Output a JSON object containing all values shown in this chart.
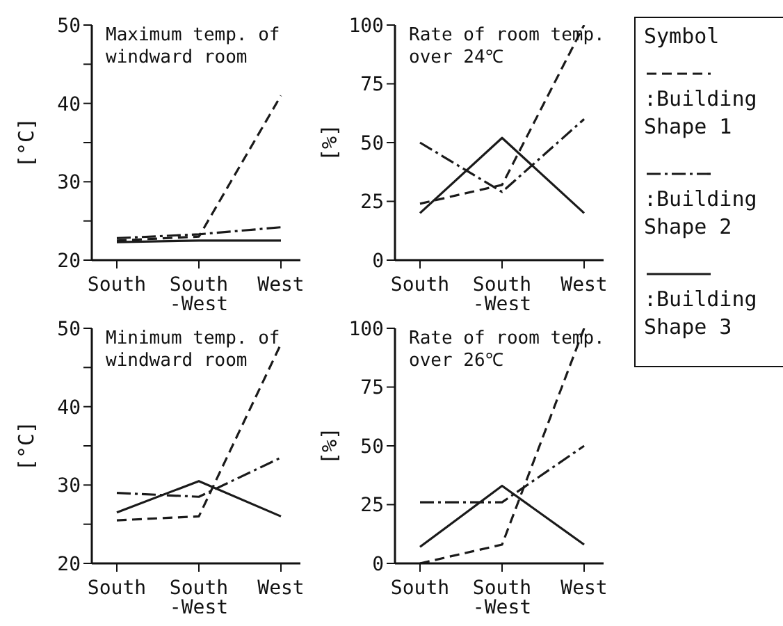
{
  "chart_data": [
    {
      "type": "line",
      "title": "Maximum temp. of windward room",
      "ylabel": "[°C]",
      "categories": [
        "South",
        "South -West",
        "West"
      ],
      "ylim": [
        20,
        50
      ],
      "yticks": [
        20,
        {
          "value": 25,
          "label": null
        },
        30,
        {
          "value": 35,
          "label": null
        },
        40,
        {
          "value": 45,
          "label": null
        },
        50
      ],
      "legend": "right",
      "legend_title": "Symbol",
      "series": [
        {
          "name": ":Building Shape 1",
          "color": "#1a1a1a",
          "line_style": "dashed",
          "values": [
            22.5,
            23,
            41
          ]
        },
        {
          "name": ":Building Shape 2",
          "color": "#1a1a1a",
          "line_style": "dashdot",
          "values": [
            22.8,
            23.3,
            24.2
          ]
        },
        {
          "name": ":Building Shape 3",
          "color": "#1a1a1a",
          "line_style": "solid",
          "values": [
            22.3,
            22.5,
            22.5
          ]
        }
      ]
    },
    {
      "type": "line",
      "title": "Rate of room temp. over 24℃",
      "ylabel": "[%]",
      "categories": [
        "South",
        "South -West",
        "West"
      ],
      "ylim": [
        0,
        100
      ],
      "yticks": [
        0,
        25,
        50,
        75,
        100
      ],
      "series": [
        {
          "color": "#1a1a1a",
          "line_style": "dashed",
          "values": [
            24,
            32,
            100
          ]
        },
        {
          "color": "#1a1a1a",
          "line_style": "dashdot",
          "values": [
            50,
            29,
            60
          ]
        },
        {
          "color": "#1a1a1a",
          "line_style": "solid",
          "values": [
            20,
            52,
            20
          ]
        }
      ]
    },
    {
      "type": "line",
      "title": "Minimum temp. of windward room",
      "ylabel": "[°C]",
      "categories": [
        "South",
        "South -West",
        "West"
      ],
      "ylim": [
        20,
        50
      ],
      "yticks": [
        20,
        {
          "value": 25,
          "label": null
        },
        30,
        {
          "value": 35,
          "label": null
        },
        40,
        {
          "value": 45,
          "label": null
        },
        50
      ],
      "series": [
        {
          "color": "#1a1a1a",
          "line_style": "dashed",
          "values": [
            25.5,
            26,
            48
          ]
        },
        {
          "color": "#1a1a1a",
          "line_style": "dashdot",
          "values": [
            29,
            28.5,
            33.5
          ]
        },
        {
          "color": "#1a1a1a",
          "line_style": "solid",
          "values": [
            26.5,
            30.5,
            26
          ]
        }
      ]
    },
    {
      "type": "line",
      "title": "Rate of room temp. over 26℃",
      "ylabel": "[%]",
      "categories": [
        "South",
        "South -West",
        "West"
      ],
      "ylim": [
        0,
        100
      ],
      "yticks": [
        0,
        25,
        50,
        75,
        100
      ],
      "series": [
        {
          "color": "#1a1a1a",
          "line_style": "dashed",
          "values": [
            0,
            8,
            100
          ]
        },
        {
          "color": "#1a1a1a",
          "line_style": "dashdot",
          "values": [
            26,
            26,
            50
          ]
        },
        {
          "color": "#1a1a1a",
          "line_style": "solid",
          "values": [
            7,
            33,
            8
          ]
        }
      ]
    }
  ]
}
